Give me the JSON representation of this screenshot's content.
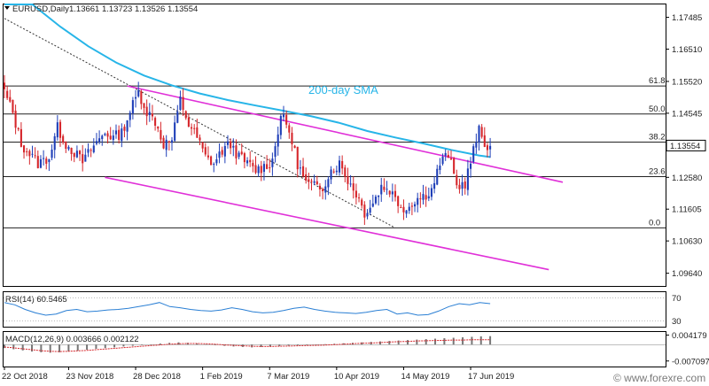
{
  "header": {
    "symbol": "EURUSD,Daily",
    "ohlc": "1.13661 1.13723 1.13526 1.13554"
  },
  "watermark": "© www.forexre.com",
  "colors": {
    "bull": "#1f3fb8",
    "bear": "#d6262b",
    "sma": "#27b5e8",
    "channel": "#e030d8",
    "trend": "#333333",
    "fib": "#222222",
    "osc": "#2a7fd4"
  },
  "chart_data": [
    {
      "type": "candlestick",
      "title": "EURUSD,Daily",
      "ylim": [
        1.0925,
        1.1788
      ],
      "y_ticks": [
        "1.17485",
        "1.16510",
        "1.15520",
        "1.14545",
        "1.13554",
        "1.12580",
        "1.11605",
        "1.10630",
        "1.09640"
      ],
      "y_tick_values": [
        1.17485,
        1.1651,
        1.1552,
        1.14545,
        1.13554,
        1.1258,
        1.11605,
        1.1063,
        1.0964
      ],
      "current_price": "1.13554",
      "current_price_value": 1.13554,
      "x_labels": [
        "22 Oct 2018",
        "23 Nov 2018",
        "28 Dec 2018",
        "1 Feb 2019",
        "7 Mar 2019",
        "10 Apr 2019",
        "14 May 2019",
        "17 Jun 2019"
      ],
      "x_label_bar_index": [
        0,
        23,
        47,
        71,
        95,
        119,
        143,
        167
      ],
      "fib_levels": [
        {
          "label": "61.8",
          "value": 1.1538
        },
        {
          "label": "50.0",
          "value": 1.1452
        },
        {
          "label": "38.2",
          "value": 1.1366
        },
        {
          "label": "23.6",
          "value": 1.126
        },
        {
          "label": "0.0",
          "value": 1.1103
        }
      ],
      "annotation": "200-day SMA",
      "close_anchors": [
        [
          0,
          1.152
        ],
        [
          3,
          1.1455
        ],
        [
          6,
          1.136
        ],
        [
          9,
          1.133
        ],
        [
          12,
          1.13
        ],
        [
          16,
          1.132
        ],
        [
          19,
          1.141
        ],
        [
          22,
          1.136
        ],
        [
          25,
          1.1335
        ],
        [
          28,
          1.1305
        ],
        [
          32,
          1.1355
        ],
        [
          36,
          1.1395
        ],
        [
          39,
          1.138
        ],
        [
          42,
          1.1395
        ],
        [
          45,
          1.146
        ],
        [
          48,
          1.152
        ],
        [
          51,
          1.146
        ],
        [
          54,
          1.143
        ],
        [
          57,
          1.136
        ],
        [
          60,
          1.137
        ],
        [
          63,
          1.1495
        ],
        [
          66,
          1.142
        ],
        [
          69,
          1.138
        ],
        [
          72,
          1.132
        ],
        [
          75,
          1.13
        ],
        [
          78,
          1.134
        ],
        [
          81,
          1.136
        ],
        [
          84,
          1.132
        ],
        [
          87,
          1.13
        ],
        [
          90,
          1.128
        ],
        [
          93,
          1.129
        ],
        [
          96,
          1.131
        ],
        [
          99,
          1.145
        ],
        [
          102,
          1.14
        ],
        [
          105,
          1.13
        ],
        [
          108,
          1.124
        ],
        [
          111,
          1.123
        ],
        [
          114,
          1.123
        ],
        [
          117,
          1.128
        ],
        [
          120,
          1.13
        ],
        [
          123,
          1.125
        ],
        [
          126,
          1.121
        ],
        [
          129,
          1.115
        ],
        [
          132,
          1.118
        ],
        [
          135,
          1.123
        ],
        [
          138,
          1.122
        ],
        [
          141,
          1.118
        ],
        [
          144,
          1.116
        ],
        [
          147,
          1.119
        ],
        [
          150,
          1.12
        ],
        [
          153,
          1.122
        ],
        [
          156,
          1.13
        ],
        [
          159,
          1.133
        ],
        [
          162,
          1.123
        ],
        [
          165,
          1.124
        ],
        [
          168,
          1.134
        ],
        [
          170,
          1.14
        ],
        [
          172,
          1.136
        ],
        [
          174,
          1.1355
        ]
      ],
      "sma_200": [
        [
          0,
          1.186
        ],
        [
          10,
          1.179
        ],
        [
          20,
          1.172
        ],
        [
          30,
          1.166
        ],
        [
          40,
          1.161
        ],
        [
          50,
          1.157
        ],
        [
          60,
          1.154
        ],
        [
          70,
          1.1515
        ],
        [
          80,
          1.1495
        ],
        [
          90,
          1.1478
        ],
        [
          100,
          1.1462
        ],
        [
          110,
          1.1445
        ],
        [
          120,
          1.1425
        ],
        [
          130,
          1.14
        ],
        [
          140,
          1.138
        ],
        [
          150,
          1.1362
        ],
        [
          160,
          1.1342
        ],
        [
          170,
          1.1325
        ],
        [
          174,
          1.132
        ]
      ],
      "channel_upper": [
        [
          44,
          1.1538
        ],
        [
          200,
          1.1243
        ]
      ],
      "channel_lower": [
        [
          36,
          1.1258
        ],
        [
          195,
          1.0975
        ]
      ],
      "trend_line": [
        [
          0,
          1.1745
        ],
        [
          140,
          1.1103
        ]
      ]
    },
    {
      "type": "line",
      "title": "RSI(14) 60.5465",
      "ylim": [
        20,
        80
      ],
      "y_ticks": [
        "70",
        "30"
      ],
      "y_tick_values": [
        70,
        30
      ],
      "series": [
        {
          "name": "RSI(14)",
          "values": [
            62,
            58,
            50,
            44,
            40,
            42,
            48,
            50,
            46,
            47,
            49,
            50,
            52,
            55,
            58,
            62,
            55,
            53,
            50,
            48,
            47,
            49,
            53,
            50,
            46,
            44,
            45,
            48,
            52,
            54,
            50,
            47,
            45,
            44,
            43,
            45,
            48,
            50,
            42,
            44,
            40,
            41,
            47,
            55,
            60,
            58,
            62,
            60
          ]
        }
      ]
    },
    {
      "type": "bar",
      "title": "MACD(12,26,9) 0.003666 0.002122",
      "ylim": [
        -0.0095,
        0.0055
      ],
      "y_ticks": [
        "0.004179",
        "-0.007097"
      ],
      "y_tick_values": [
        0.004179,
        -0.007097
      ],
      "series": [
        {
          "name": "MACD",
          "values": [
            -0.0015,
            -0.002,
            -0.0025,
            -0.003,
            -0.0033,
            -0.0035,
            -0.0033,
            -0.003,
            -0.0026,
            -0.0022,
            -0.0018,
            -0.0015,
            -0.0012,
            -0.0008,
            -0.0005,
            -0.0002,
            0.0,
            0.0005,
            0.0008,
            0.001,
            0.0008,
            0.0005,
            0.0002,
            -0.0002,
            -0.0005,
            -0.0008,
            -0.001,
            -0.0012,
            -0.001,
            -0.0008,
            -0.0006,
            -0.0004,
            -0.0003,
            -0.0002,
            0.0,
            0.0002,
            0.0004,
            0.0006,
            0.0008,
            0.001,
            0.0012,
            0.0014,
            0.0016,
            0.0018,
            0.002,
            0.0022,
            0.0024,
            0.0026,
            0.0028,
            0.003,
            0.0032,
            0.0034,
            0.0036,
            0.0037
          ]
        },
        {
          "name": "Signal",
          "values": [
            -0.001,
            -0.0014,
            -0.0018,
            -0.0022,
            -0.0026,
            -0.0029,
            -0.003,
            -0.0029,
            -0.0027,
            -0.0025,
            -0.0022,
            -0.0019,
            -0.0016,
            -0.0013,
            -0.001,
            -0.0007,
            -0.0004,
            -0.0001,
            0.0002,
            0.0004,
            0.0005,
            0.0005,
            0.0004,
            0.0002,
            -0.0001,
            -0.0003,
            -0.0005,
            -0.0007,
            -0.0008,
            -0.0008,
            -0.0007,
            -0.0006,
            -0.0005,
            -0.0004,
            -0.0003,
            -0.0002,
            0.0,
            0.0002,
            0.0004,
            0.0006,
            0.0007,
            0.0009,
            0.0011,
            0.0013,
            0.0014,
            0.0016,
            0.0017,
            0.0018,
            0.0019,
            0.002,
            0.002,
            0.0021,
            0.0021,
            0.0021
          ]
        }
      ]
    }
  ]
}
